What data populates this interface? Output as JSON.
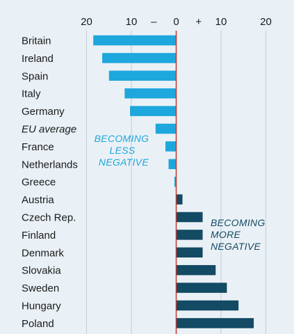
{
  "colors": {
    "background": "#eaf1f6",
    "grid": "#c3ccd4",
    "zero_line": "#c0392b",
    "less_negative": "#1ea7dc",
    "more_negative": "#134a64"
  },
  "chart_data": {
    "type": "bar",
    "orientation": "horizontal",
    "categories": [
      "Britain",
      "Ireland",
      "Spain",
      "Italy",
      "Germany",
      "EU average",
      "France",
      "Netherlands",
      "Greece",
      "Austria",
      "Czech Rep.",
      "Finland",
      "Denmark",
      "Slovakia",
      "Sweden",
      "Hungary",
      "Poland"
    ],
    "italic_categories": [
      "EU average"
    ],
    "values": [
      -18.5,
      -16.5,
      -15,
      -11.5,
      -10.3,
      -4.6,
      -2.4,
      -1.7,
      -0.4,
      1.4,
      5.9,
      5.9,
      5.9,
      8.8,
      11.3,
      13.9,
      17.3
    ],
    "xlim": [
      -20,
      20
    ],
    "grid": true,
    "x_ticks": [
      {
        "value": 20,
        "label": "20"
      },
      {
        "value": 10,
        "label": "10"
      },
      {
        "value": 5,
        "label": "–"
      },
      {
        "value": 0,
        "label": "0"
      },
      {
        "value": -5,
        "label": "+"
      },
      {
        "value": -10,
        "label": "10"
      },
      {
        "value": -20,
        "label": "20"
      }
    ],
    "annotations": [
      {
        "lines": [
          "BECOMING",
          "LESS",
          "NEGATIVE"
        ],
        "color": "#1ea7dc"
      },
      {
        "lines": [
          "BECOMING",
          "MORE",
          "NEGATIVE"
        ],
        "color": "#134a64"
      }
    ]
  }
}
